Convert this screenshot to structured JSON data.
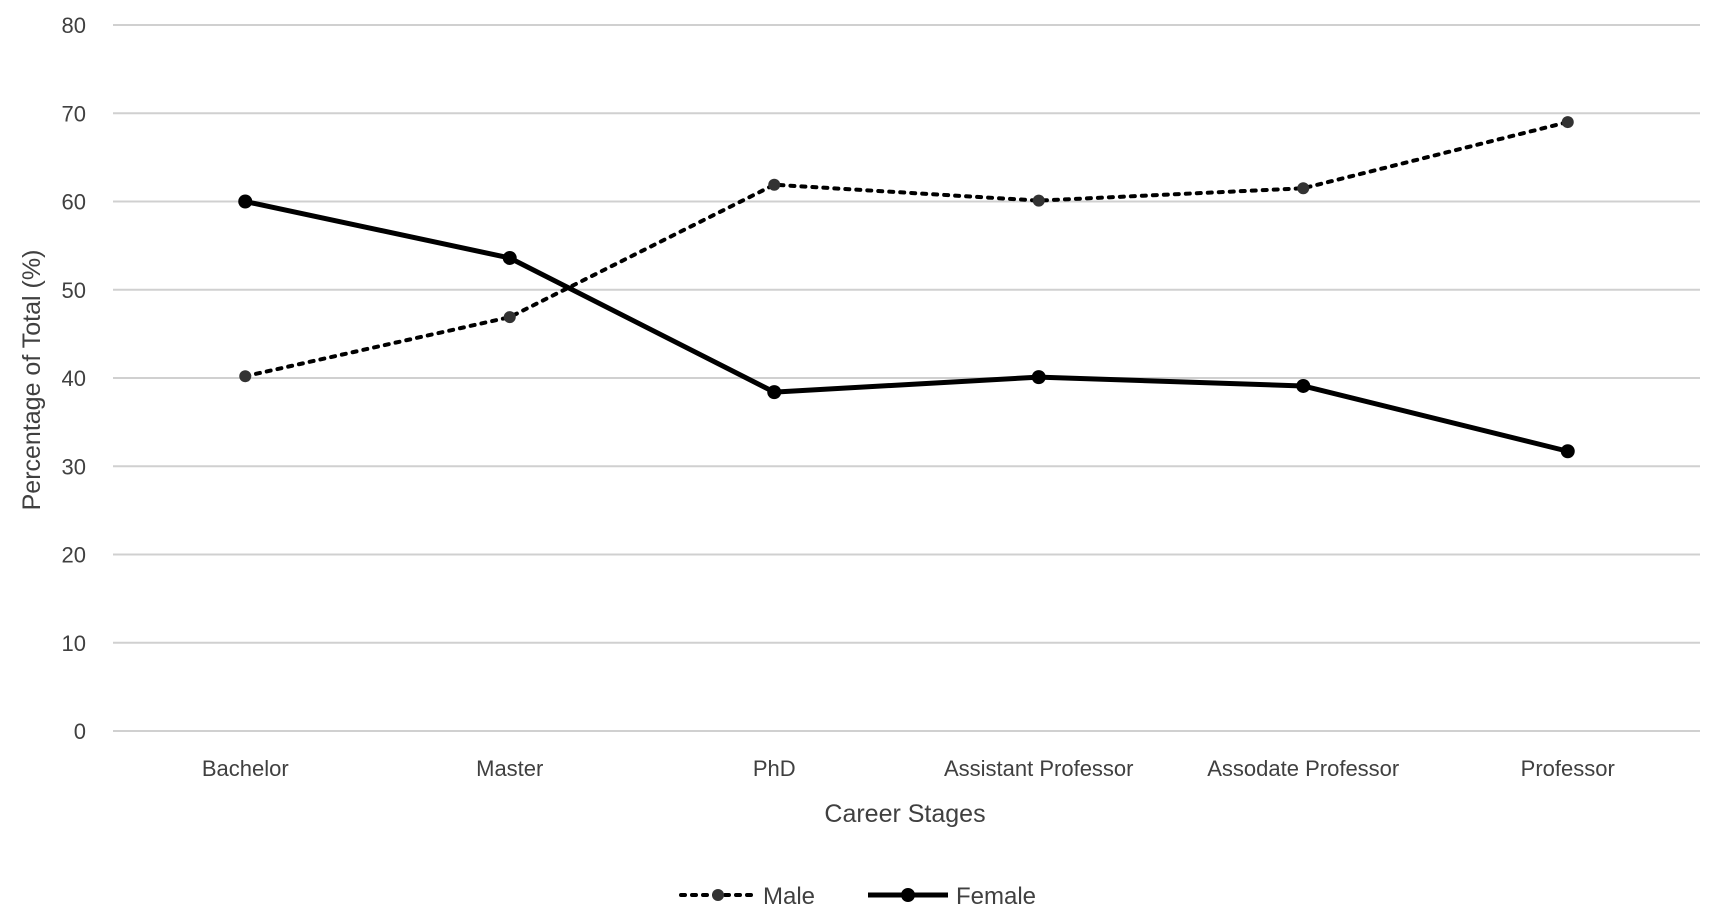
{
  "chart_data": {
    "type": "line",
    "title": "",
    "xlabel": "Career Stages",
    "ylabel": "Percentage of Total (%)",
    "ylim": [
      0,
      80
    ],
    "yticks": [
      0,
      10,
      20,
      30,
      40,
      50,
      60,
      70,
      80
    ],
    "grid": true,
    "legend_position": "bottom",
    "categories": [
      "Bachelor",
      "Master",
      "PhD",
      "Assistant Professor",
      "Assodate Professor",
      "Professor"
    ],
    "series": [
      {
        "name": "Male",
        "style": "dotted",
        "color": "#000000",
        "values": [
          40.2,
          46.9,
          61.9,
          60.1,
          61.5,
          69.0
        ]
      },
      {
        "name": "Female",
        "style": "solid",
        "color": "#000000",
        "values": [
          60.0,
          53.6,
          38.4,
          40.1,
          39.1,
          31.7
        ]
      }
    ]
  }
}
